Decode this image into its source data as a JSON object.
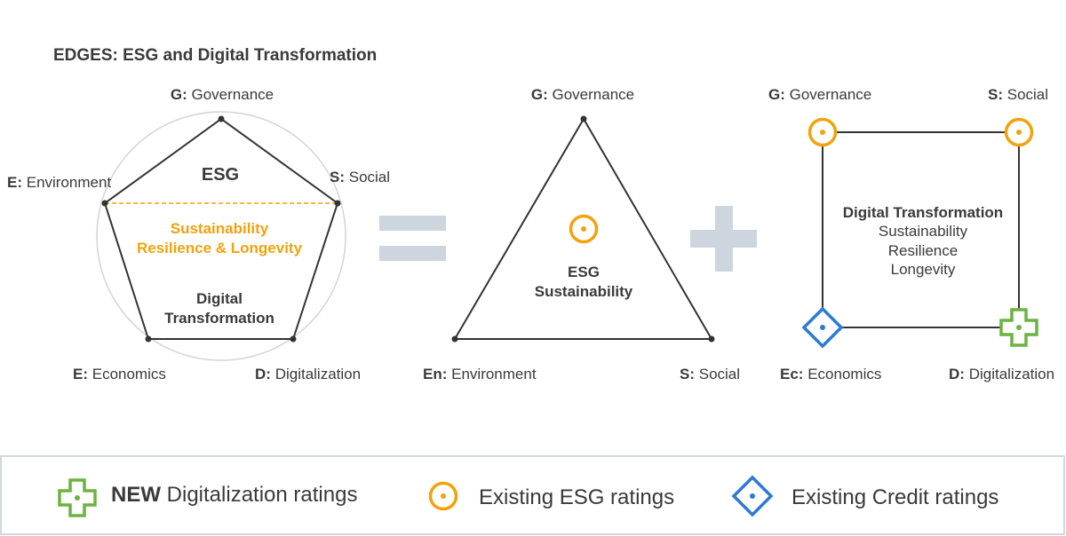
{
  "title": "EDGES: ESG and Digital Transformation",
  "pentagon": {
    "vertices": {
      "top": {
        "prefix": "G:",
        "text": "Governance"
      },
      "left": {
        "prefix": "E:",
        "text": "Environment"
      },
      "right": {
        "prefix": "S:",
        "text": "Social"
      },
      "bottom_left": {
        "prefix": "E:",
        "text": "Economics"
      },
      "bottom_right": {
        "prefix": "D:",
        "text": "Digitalization"
      }
    },
    "top_section": "ESG",
    "middle_line1": "Sustainability",
    "middle_line2": "Resilience & Longevity",
    "bottom_line1": "Digital",
    "bottom_line2": "Transformation"
  },
  "triangle": {
    "vertices": {
      "top": {
        "prefix": "G:",
        "text": "Governance"
      },
      "bottom_left": {
        "prefix": "En:",
        "text": "Environment"
      },
      "bottom_right": {
        "prefix": "S:",
        "text": "Social"
      }
    },
    "center_line1": "ESG",
    "center_line2": "Sustainability"
  },
  "square": {
    "vertices": {
      "top_left": {
        "prefix": "G:",
        "text": "Governance"
      },
      "top_right": {
        "prefix": "S:",
        "text": "Social"
      },
      "bottom_left": {
        "prefix": "Ec:",
        "text": "Economics"
      },
      "bottom_right": {
        "prefix": "D:",
        "text": "Digitalization"
      }
    },
    "center_title": "Digital Transformation",
    "center_lines": [
      "Sustainability",
      "Resilience",
      "Longevity"
    ]
  },
  "legend": {
    "digitalization": {
      "bold": "NEW",
      "text": "Digitalization ratings",
      "icon": "green-cross-icon"
    },
    "esg": {
      "text": "Existing ESG ratings",
      "icon": "orange-circle-icon"
    },
    "credit": {
      "text": "Existing Credit ratings",
      "icon": "blue-diamond-icon"
    }
  },
  "colors": {
    "orange": "#f2a20c",
    "green": "#6cb33f",
    "blue": "#2a7bd4",
    "operator": "#cdd5de",
    "text": "#3a3a3a"
  }
}
